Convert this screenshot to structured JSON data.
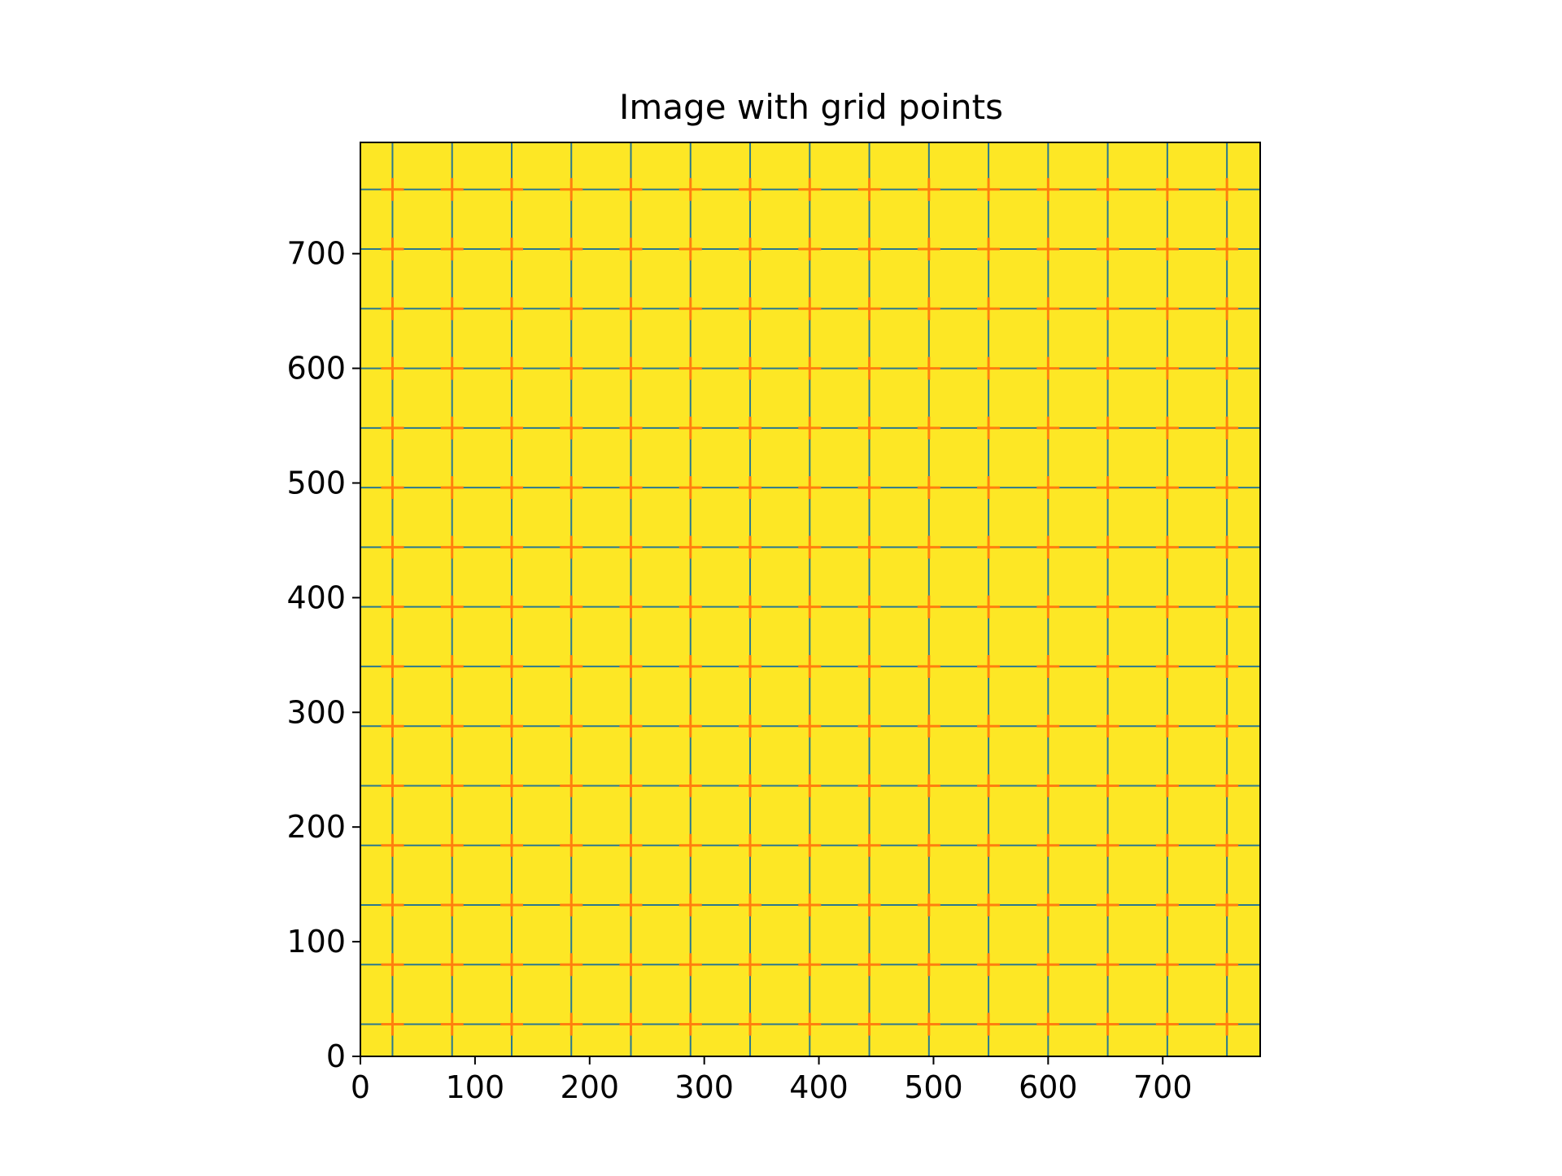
{
  "chart_data": {
    "type": "scatter",
    "title": "Image with grid points",
    "xlabel": "",
    "ylabel": "",
    "xlim": [
      0,
      785
    ],
    "ylim": [
      0,
      797
    ],
    "x_ticks": [
      0,
      100,
      200,
      300,
      400,
      500,
      600,
      700
    ],
    "y_ticks": [
      0,
      100,
      200,
      300,
      400,
      500,
      600,
      700
    ],
    "x_tick_labels": [
      "0",
      "100",
      "200",
      "300",
      "400",
      "500",
      "600",
      "700"
    ],
    "y_tick_labels": [
      "0",
      "100",
      "200",
      "300",
      "400",
      "500",
      "600",
      "700"
    ],
    "image_color": "#fde725",
    "grid_line_color": "#2a788e",
    "marker_color": "#ff7f0e",
    "marker": "plus",
    "grid_x": [
      28,
      80,
      132,
      184,
      236,
      288,
      340,
      392,
      444,
      496,
      548,
      600,
      652,
      704,
      756
    ],
    "grid_y": [
      28,
      80,
      132,
      184,
      236,
      288,
      340,
      392,
      444,
      496,
      548,
      600,
      652,
      704,
      756
    ],
    "points_x": [
      28,
      80,
      132,
      184,
      236,
      288,
      340,
      392,
      444,
      496,
      548,
      600,
      652,
      704,
      756
    ],
    "points_y": [
      28,
      80,
      132,
      184,
      236,
      288,
      340,
      392,
      444,
      496,
      548,
      600,
      652,
      704,
      756
    ]
  }
}
